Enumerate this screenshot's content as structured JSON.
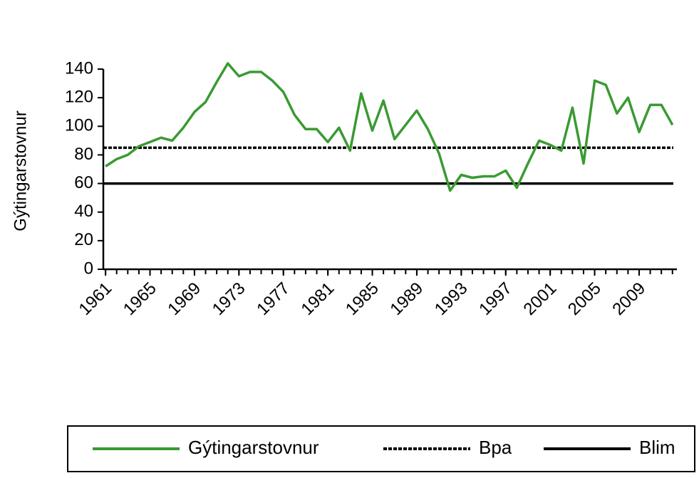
{
  "chart_data": {
    "type": "line",
    "y_label": "Gýtingarstovnur",
    "x": [
      1961,
      1962,
      1963,
      1964,
      1965,
      1966,
      1967,
      1968,
      1969,
      1970,
      1971,
      1972,
      1973,
      1974,
      1975,
      1976,
      1977,
      1978,
      1979,
      1980,
      1981,
      1982,
      1983,
      1984,
      1985,
      1986,
      1987,
      1988,
      1989,
      1990,
      1991,
      1992,
      1993,
      1994,
      1995,
      1996,
      1997,
      1998,
      1999,
      2000,
      2001,
      2002,
      2003,
      2004,
      2005,
      2006,
      2007,
      2008,
      2009,
      2010,
      2011,
      2012
    ],
    "series": [
      {
        "name": "Gýtingarstovnur",
        "color": "#3a9a32",
        "values": [
          72,
          77,
          80,
          86,
          89,
          92,
          90,
          99,
          110,
          117,
          131,
          144,
          135,
          138,
          138,
          132,
          124,
          108,
          98,
          98,
          89,
          99,
          83,
          123,
          97,
          118,
          91,
          101,
          111,
          98,
          81,
          55,
          66,
          64,
          65,
          65,
          69,
          57,
          74,
          90,
          87,
          83,
          113,
          74,
          132,
          129,
          109,
          120,
          96,
          115,
          115,
          101
        ]
      }
    ],
    "reference_lines": [
      {
        "name": "Bpa",
        "value": 85,
        "color": "#000000",
        "dashed": true
      },
      {
        "name": "Blim",
        "value": 60,
        "color": "#000000",
        "dashed": false
      }
    ],
    "xlim": [
      1960.8,
      2012.4
    ],
    "xticks": [
      1961,
      1965,
      1969,
      1973,
      1977,
      1981,
      1985,
      1989,
      1993,
      1997,
      2001,
      2005,
      2009
    ],
    "ylim": [
      0,
      140
    ],
    "yticks": [
      0,
      20,
      40,
      60,
      80,
      100,
      120,
      140
    ],
    "grid": false,
    "legend": "bottom"
  }
}
